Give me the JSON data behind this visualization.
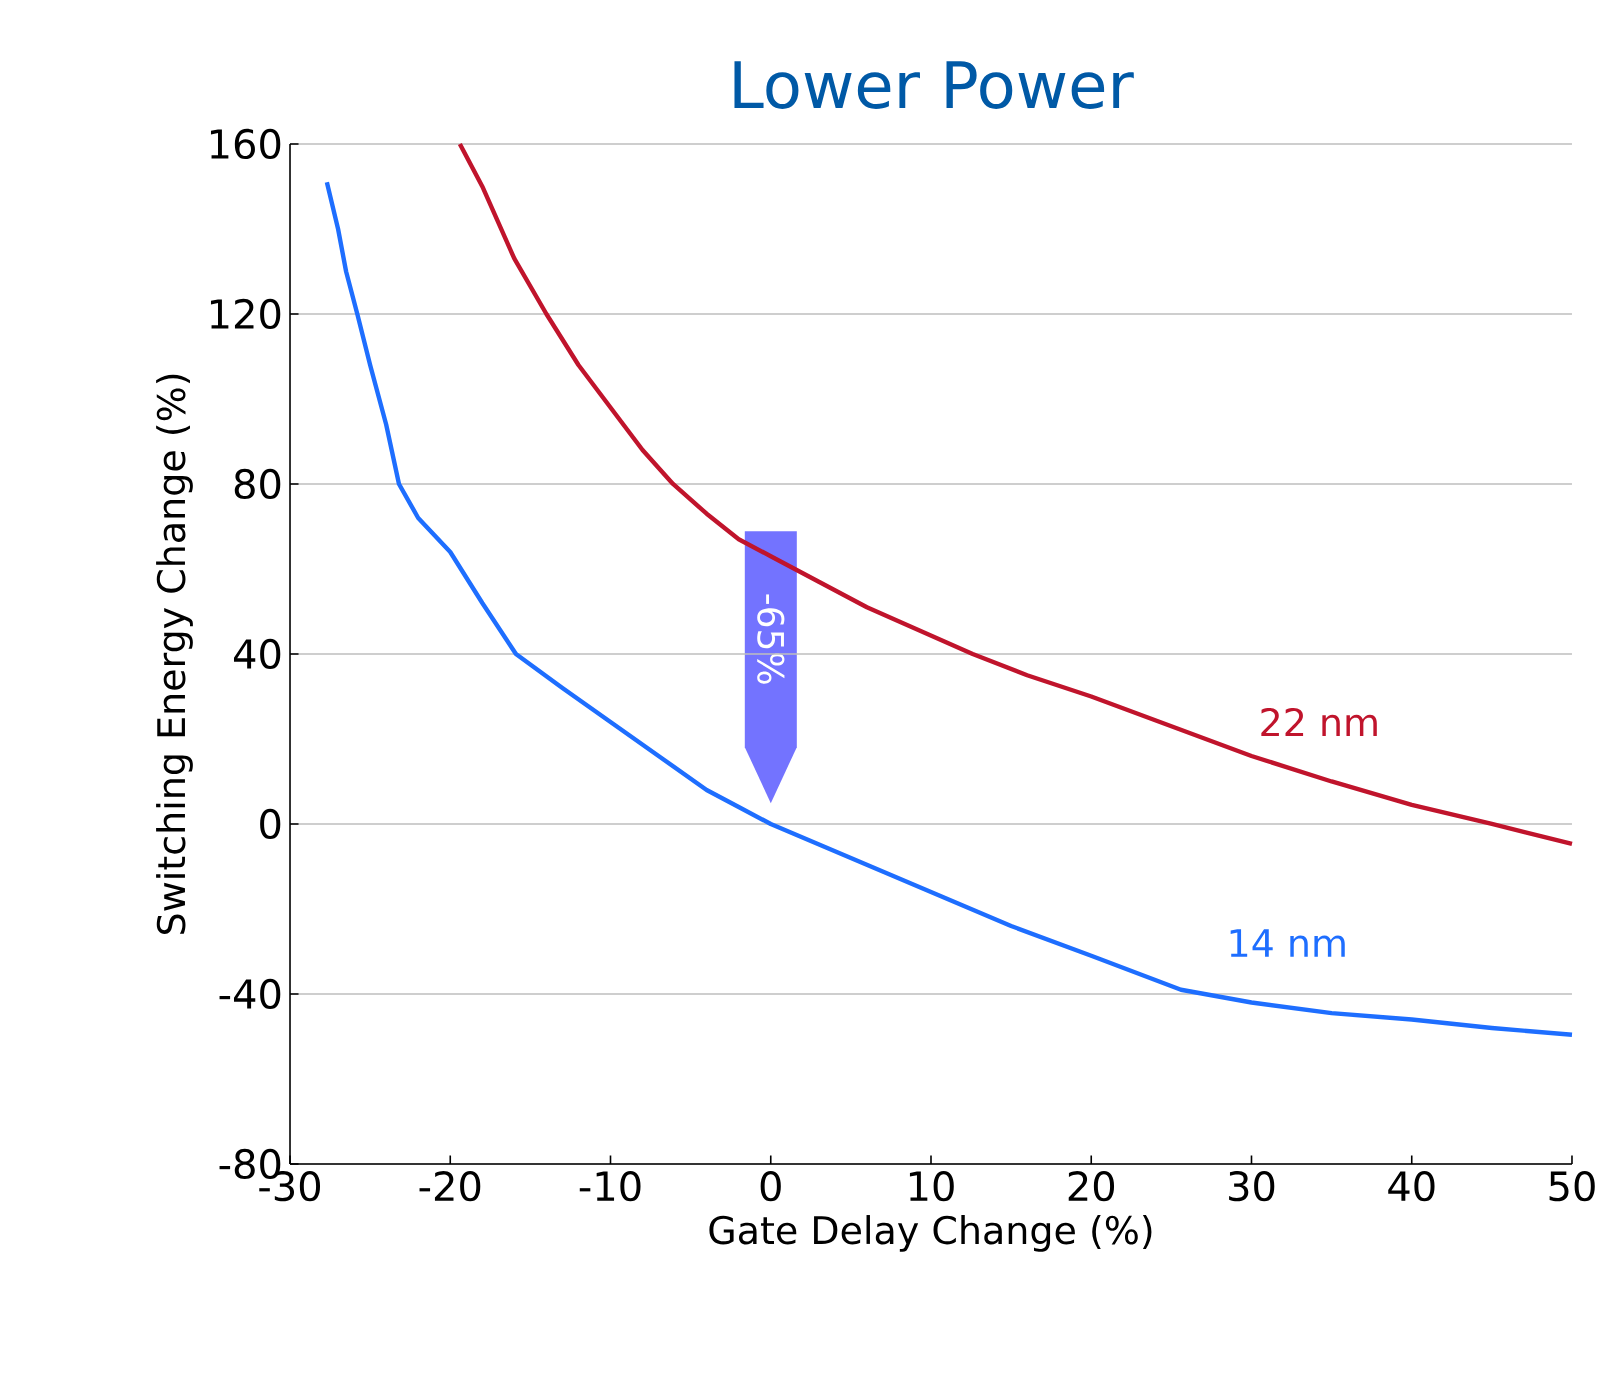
{
  "chart_data": {
    "type": "line",
    "title": "Lower Power",
    "xlabel": "Gate Delay Change (%)",
    "ylabel": "Switching Energy Change (%)",
    "xlim": [
      -30,
      50
    ],
    "ylim": [
      -80,
      160
    ],
    "xticks": [
      -30,
      -20,
      -10,
      0,
      10,
      20,
      30,
      40,
      50
    ],
    "yticks": [
      -80,
      -40,
      0,
      40,
      80,
      120,
      160
    ],
    "grid": "y",
    "line_style": "solid",
    "marker": "none",
    "series": [
      {
        "name": "22 nm",
        "color": "#c0142c",
        "x": [
          -19.4,
          -18,
          -16,
          -14,
          -12,
          -10,
          -8,
          -6.1,
          -4,
          -2,
          0,
          3,
          6,
          9,
          12.6,
          16,
          20,
          25,
          30,
          35,
          40,
          45,
          50
        ],
        "values": [
          160,
          150,
          133,
          120,
          108,
          98,
          88,
          80,
          73,
          67,
          63,
          57,
          51,
          46,
          40,
          35,
          30,
          23,
          16,
          10,
          4.5,
          0,
          -4.7
        ]
      },
      {
        "name": "14 nm",
        "color": "#1e6eff",
        "x": [
          -27.7,
          -27,
          -26.5,
          -25.8,
          -25,
          -24,
          -23.2,
          -22,
          -21,
          -20,
          -18,
          -15.9,
          -13,
          -10,
          -7,
          -4,
          -2,
          0,
          5,
          10,
          15,
          20,
          25.6,
          30,
          35,
          40,
          45,
          50
        ],
        "values": [
          151,
          140,
          130,
          120,
          108,
          94,
          80,
          72,
          68,
          64,
          52,
          40,
          32,
          24,
          16,
          8,
          4,
          0,
          -8,
          -16,
          -24,
          -31,
          -39,
          -42,
          -44.5,
          -46,
          -48,
          -49.6
        ]
      }
    ],
    "annotations": [
      "-65%"
    ]
  }
}
